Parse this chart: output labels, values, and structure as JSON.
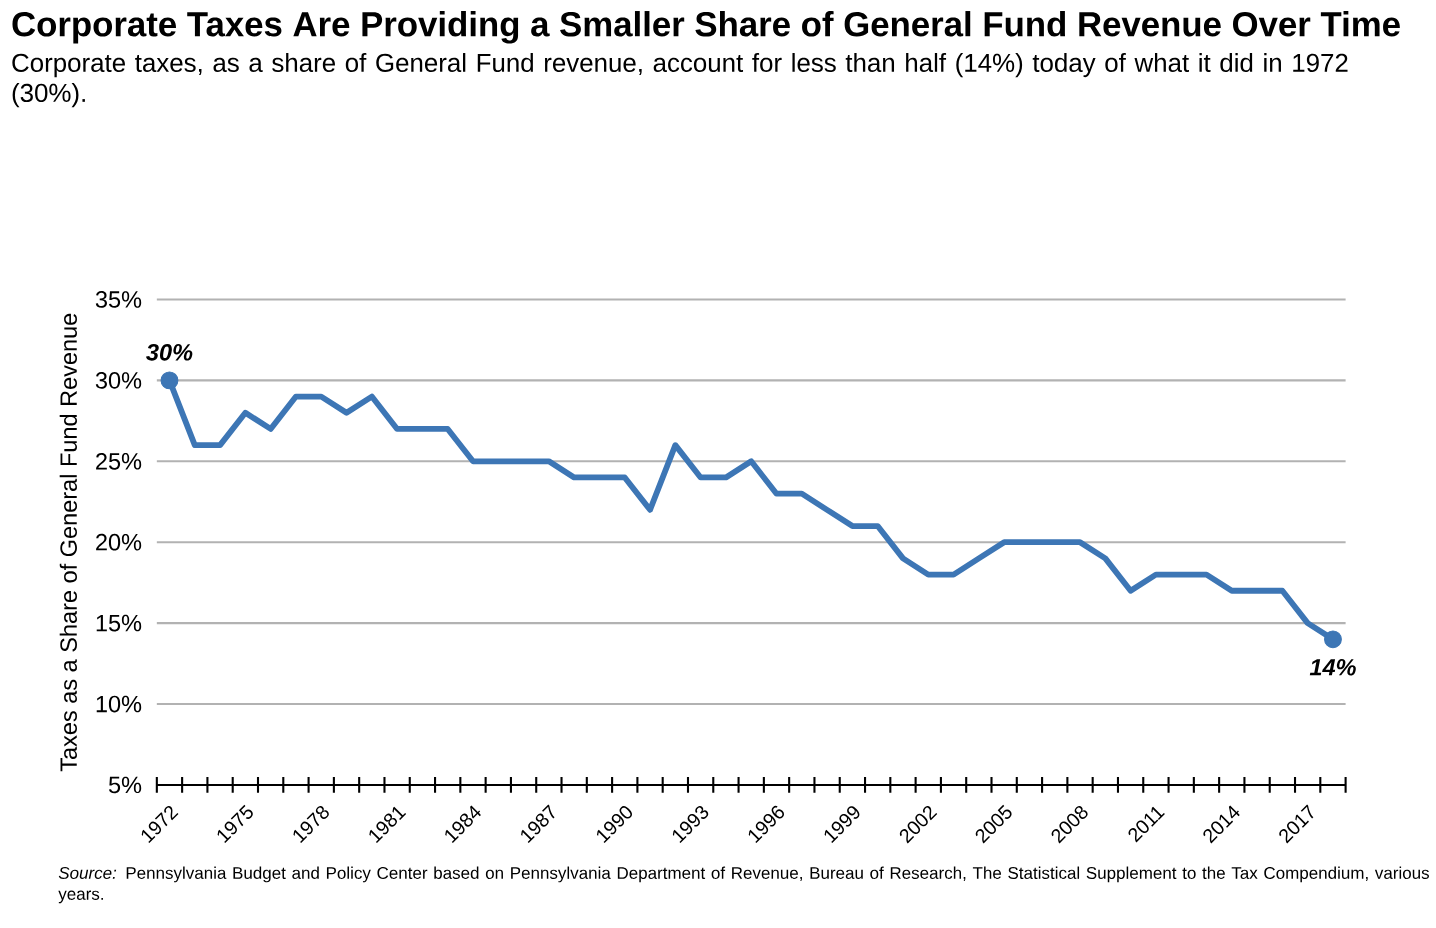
{
  "chart_data": {
    "type": "line",
    "title": "Corporate Taxes Are Providing a Smaller Share of General Fund Revenue Over Time",
    "subtitle": "Corporate taxes, as a share of General Fund revenue, account for less than half (14%) today of what it did in 1972 (30%).",
    "ylabel": "Taxes as a Share of General Fund Revenue",
    "annotations": [
      "*Source:* Pennsylvania Budget and Policy Center based on Pennsylvania Department of Revenue, Bureau of Research, The Statistical Supplement to the Tax Compendium, various years."
    ],
    "categories": [
      "1972",
      null,
      null,
      "1975",
      null,
      null,
      "1978",
      null,
      null,
      "1981",
      null,
      null,
      "1984",
      null,
      null,
      "1987",
      null,
      null,
      "1990",
      null,
      null,
      "1993",
      null,
      null,
      "1996",
      null,
      null,
      "1999",
      null,
      null,
      "2002",
      null,
      null,
      "2005",
      null,
      null,
      "2008",
      null,
      null,
      "2011",
      null,
      null,
      "2014",
      null,
      null,
      "2017",
      null
    ],
    "series": [
      {
        "color": "#3d76b5",
        "values": [
          30,
          26,
          26,
          28,
          27,
          29,
          29,
          28,
          29,
          27,
          27,
          27,
          25,
          25,
          25,
          25,
          24,
          24,
          24,
          22,
          26,
          24,
          24,
          25,
          23,
          23,
          22,
          21,
          21,
          19,
          18,
          18,
          19,
          20,
          20,
          20,
          20,
          19,
          17,
          18,
          18,
          18,
          17,
          17,
          17,
          15,
          14
        ],
        "value_labels": [
          "30%",
          null,
          null,
          null,
          null,
          null,
          null,
          null,
          null,
          null,
          null,
          null,
          null,
          null,
          null,
          null,
          null,
          null,
          null,
          null,
          null,
          null,
          null,
          null,
          null,
          null,
          null,
          null,
          null,
          null,
          null,
          null,
          null,
          null,
          null,
          null,
          null,
          null,
          null,
          null,
          null,
          null,
          null,
          null,
          null,
          null,
          "14%"
        ]
      }
    ],
    "ylim": [
      5,
      35
    ],
    "yticks": [
      {
        "value": 5,
        "label": "5%"
      },
      {
        "value": 10,
        "label": "10%"
      },
      {
        "value": 15,
        "label": "15%"
      },
      {
        "value": 20,
        "label": "20%"
      },
      {
        "value": 25,
        "label": "25%"
      },
      {
        "value": 30,
        "label": "30%"
      },
      {
        "value": 35,
        "label": "35%"
      }
    ],
    "grid": "y"
  }
}
